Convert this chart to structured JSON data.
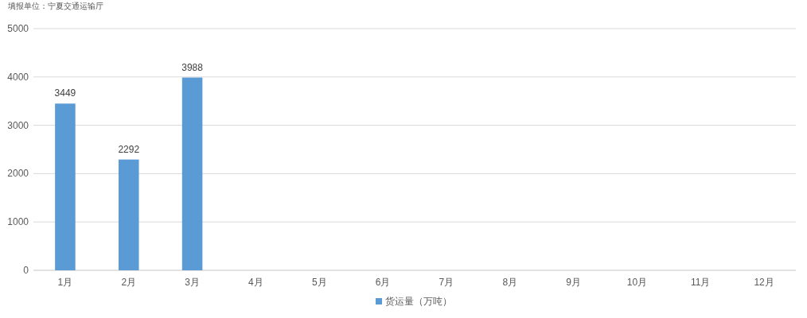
{
  "chart_data": {
    "type": "bar",
    "annotations": [
      "填报单位：宁夏交通运输厅"
    ],
    "categories": [
      "1月",
      "2月",
      "3月",
      "4月",
      "5月",
      "6月",
      "7月",
      "8月",
      "9月",
      "10月",
      "11月",
      "12月"
    ],
    "series": [
      {
        "name": "货运量（万吨）",
        "color": "#5b9bd5",
        "values": [
          3449,
          2292,
          3988,
          null,
          null,
          null,
          null,
          null,
          null,
          null,
          null,
          null
        ]
      }
    ],
    "ylim": [
      0,
      5000
    ],
    "yticks": [
      0,
      1000,
      2000,
      3000,
      4000,
      5000
    ],
    "grid": "y",
    "legend": "bottom",
    "data_labels": true
  }
}
